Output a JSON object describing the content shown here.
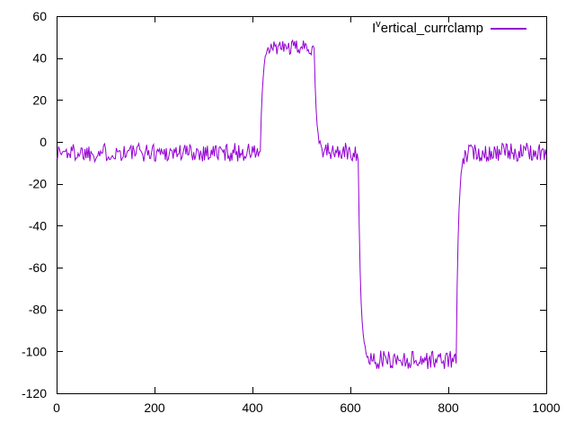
{
  "chart_data": {
    "type": "line",
    "title": "",
    "xlabel": "",
    "ylabel": "",
    "xlim": [
      0,
      1000
    ],
    "ylim": [
      -120,
      60
    ],
    "xticks": [
      0,
      200,
      400,
      600,
      800,
      1000
    ],
    "yticks": [
      60,
      40,
      20,
      0,
      -20,
      -40,
      -60,
      -80,
      -100,
      -120
    ],
    "grid": false,
    "legend_position": "top-right",
    "background_color": "#ffffff",
    "axis_color": "#000000",
    "series": [
      {
        "name": "Iᵛertical_currclamp",
        "legend_label": {
          "prefix": "I",
          "superscript": "v",
          "rest": "ertical_currclamp"
        },
        "color": "#9400d3",
        "waveform": "noisy piecewise-constant pulse signal",
        "sample_step": 2,
        "segments": [
          {
            "x_start": 0,
            "x_end": 418,
            "level": -5,
            "noise": 4.5
          },
          {
            "x_start": 418,
            "x_end": 527,
            "level": 45,
            "noise": 3.5
          },
          {
            "x_start": 527,
            "x_end": 618,
            "level": -5,
            "noise": 4.5
          },
          {
            "x_start": 618,
            "x_end": 818,
            "level": -104,
            "noise": 4.5
          },
          {
            "x_start": 818,
            "x_end": 1000,
            "level": -5,
            "noise": 4.5
          }
        ]
      }
    ]
  }
}
